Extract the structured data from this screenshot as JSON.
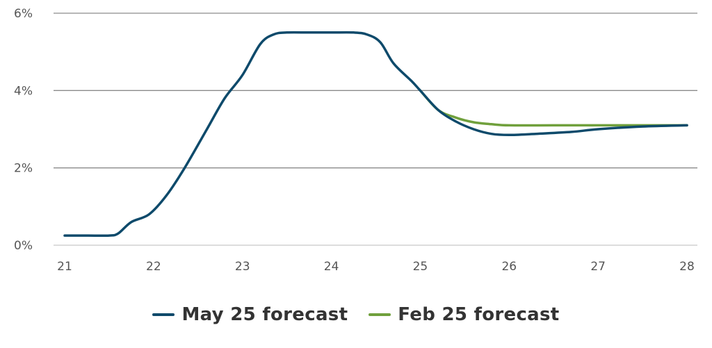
{
  "chart_data": {
    "type": "line",
    "ylim": [
      0,
      6
    ],
    "xlim": [
      21,
      28
    ],
    "y_ticks": [
      "0%",
      "2%",
      "4%",
      "6%"
    ],
    "y_tick_values": [
      0,
      2,
      4,
      6
    ],
    "x_ticks": [
      "21",
      "22",
      "23",
      "24",
      "25",
      "26",
      "27",
      "28"
    ],
    "x_tick_values": [
      21,
      22,
      23,
      24,
      25,
      26,
      27,
      28
    ],
    "grid": true,
    "legend": "bottom-center",
    "series": [
      {
        "name": "Feb 25 forecast",
        "color": "#70a03c",
        "points": [
          [
            25.0,
            4.0
          ],
          [
            25.2,
            3.5
          ],
          [
            25.4,
            3.3
          ],
          [
            25.6,
            3.18
          ],
          [
            25.8,
            3.13
          ],
          [
            26.0,
            3.1
          ],
          [
            26.5,
            3.1
          ],
          [
            27.0,
            3.1
          ],
          [
            27.5,
            3.1
          ],
          [
            28.0,
            3.1
          ]
        ]
      },
      {
        "name": "May 25 forecast",
        "color": "#0e4a6b",
        "points": [
          [
            21.0,
            0.25
          ],
          [
            21.25,
            0.25
          ],
          [
            21.5,
            0.25
          ],
          [
            21.6,
            0.3
          ],
          [
            21.75,
            0.6
          ],
          [
            21.95,
            0.8
          ],
          [
            22.15,
            1.3
          ],
          [
            22.35,
            2.0
          ],
          [
            22.6,
            3.0
          ],
          [
            22.8,
            3.8
          ],
          [
            23.0,
            4.4
          ],
          [
            23.2,
            5.2
          ],
          [
            23.35,
            5.45
          ],
          [
            23.5,
            5.5
          ],
          [
            23.75,
            5.5
          ],
          [
            24.0,
            5.5
          ],
          [
            24.25,
            5.5
          ],
          [
            24.4,
            5.45
          ],
          [
            24.55,
            5.25
          ],
          [
            24.7,
            4.7
          ],
          [
            24.9,
            4.25
          ],
          [
            25.0,
            4.0
          ],
          [
            25.2,
            3.5
          ],
          [
            25.4,
            3.2
          ],
          [
            25.6,
            3.0
          ],
          [
            25.8,
            2.88
          ],
          [
            26.0,
            2.85
          ],
          [
            26.3,
            2.88
          ],
          [
            26.7,
            2.93
          ],
          [
            27.0,
            3.0
          ],
          [
            27.5,
            3.07
          ],
          [
            28.0,
            3.1
          ]
        ]
      }
    ]
  },
  "legend": {
    "items": [
      {
        "label": "May 25 forecast",
        "color": "#0e4a6b"
      },
      {
        "label": "Feb 25 forecast",
        "color": "#70a03c"
      }
    ]
  }
}
